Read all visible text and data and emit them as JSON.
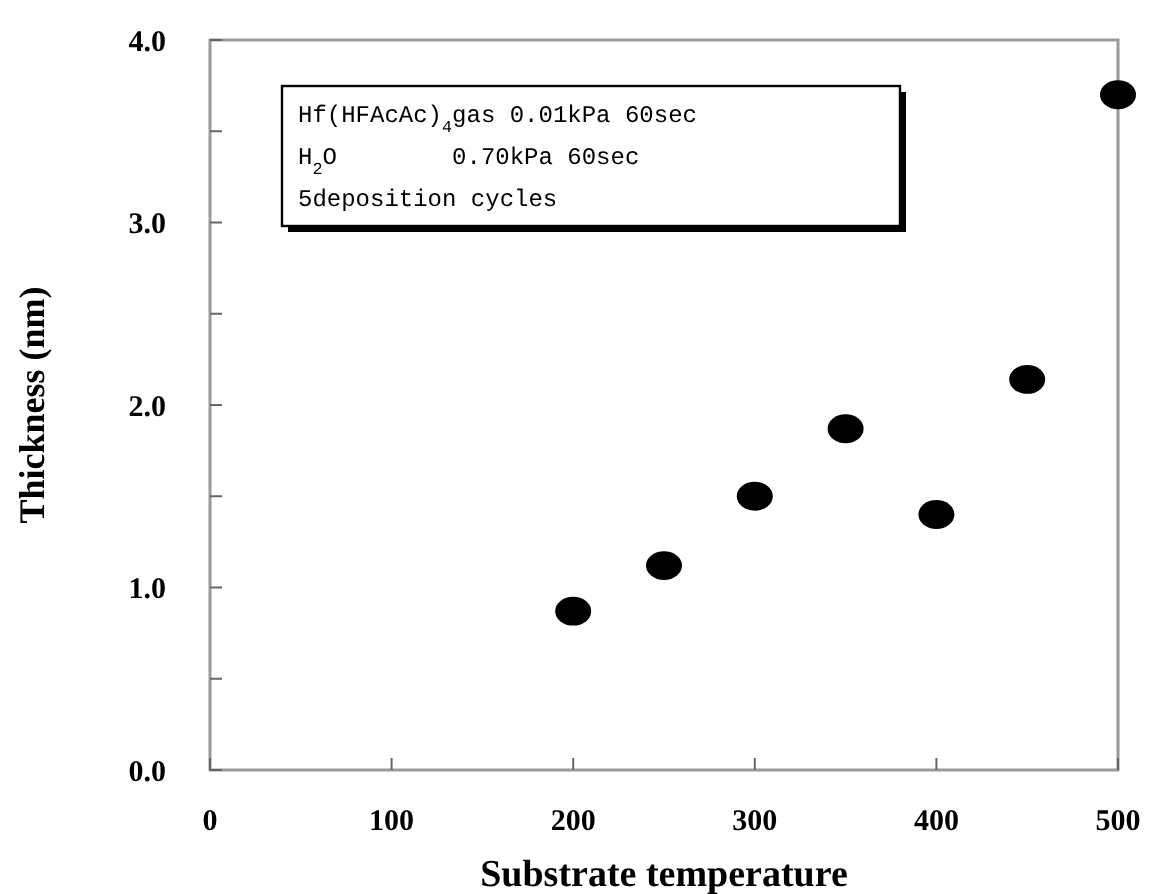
{
  "chart_data": {
    "type": "scatter",
    "xlabel": "Substrate temperature",
    "ylabel": "Thickness (nm)",
    "x": [
      200,
      250,
      300,
      350,
      400,
      450,
      500
    ],
    "values": [
      0.87,
      1.12,
      1.5,
      1.87,
      1.4,
      2.14,
      3.7
    ],
    "color": "#000000",
    "marker": "circle",
    "xlim": [
      0,
      500
    ],
    "xticks": [
      0,
      100,
      200,
      300,
      400,
      500
    ],
    "ylim": [
      0,
      4
    ],
    "yticks": [
      {
        "value": 0,
        "label": "0.0"
      },
      {
        "value": 0.5,
        "label": null
      },
      {
        "value": 1,
        "label": "1.0"
      },
      {
        "value": 1.5,
        "label": null
      },
      {
        "value": 2,
        "label": "2.0"
      },
      {
        "value": 2.5,
        "label": null
      },
      {
        "value": 3,
        "label": "3.0"
      },
      {
        "value": 3.5,
        "label": null
      },
      {
        "value": 4,
        "label": "4.0"
      }
    ],
    "annotations": [
      "Hf(HFAcAc)$_{4}$gas 0.01kPa 60sec",
      "H$_{2}$O        0.70kPa 60sec",
      "5deposition cycles"
    ],
    "grid": false
  }
}
